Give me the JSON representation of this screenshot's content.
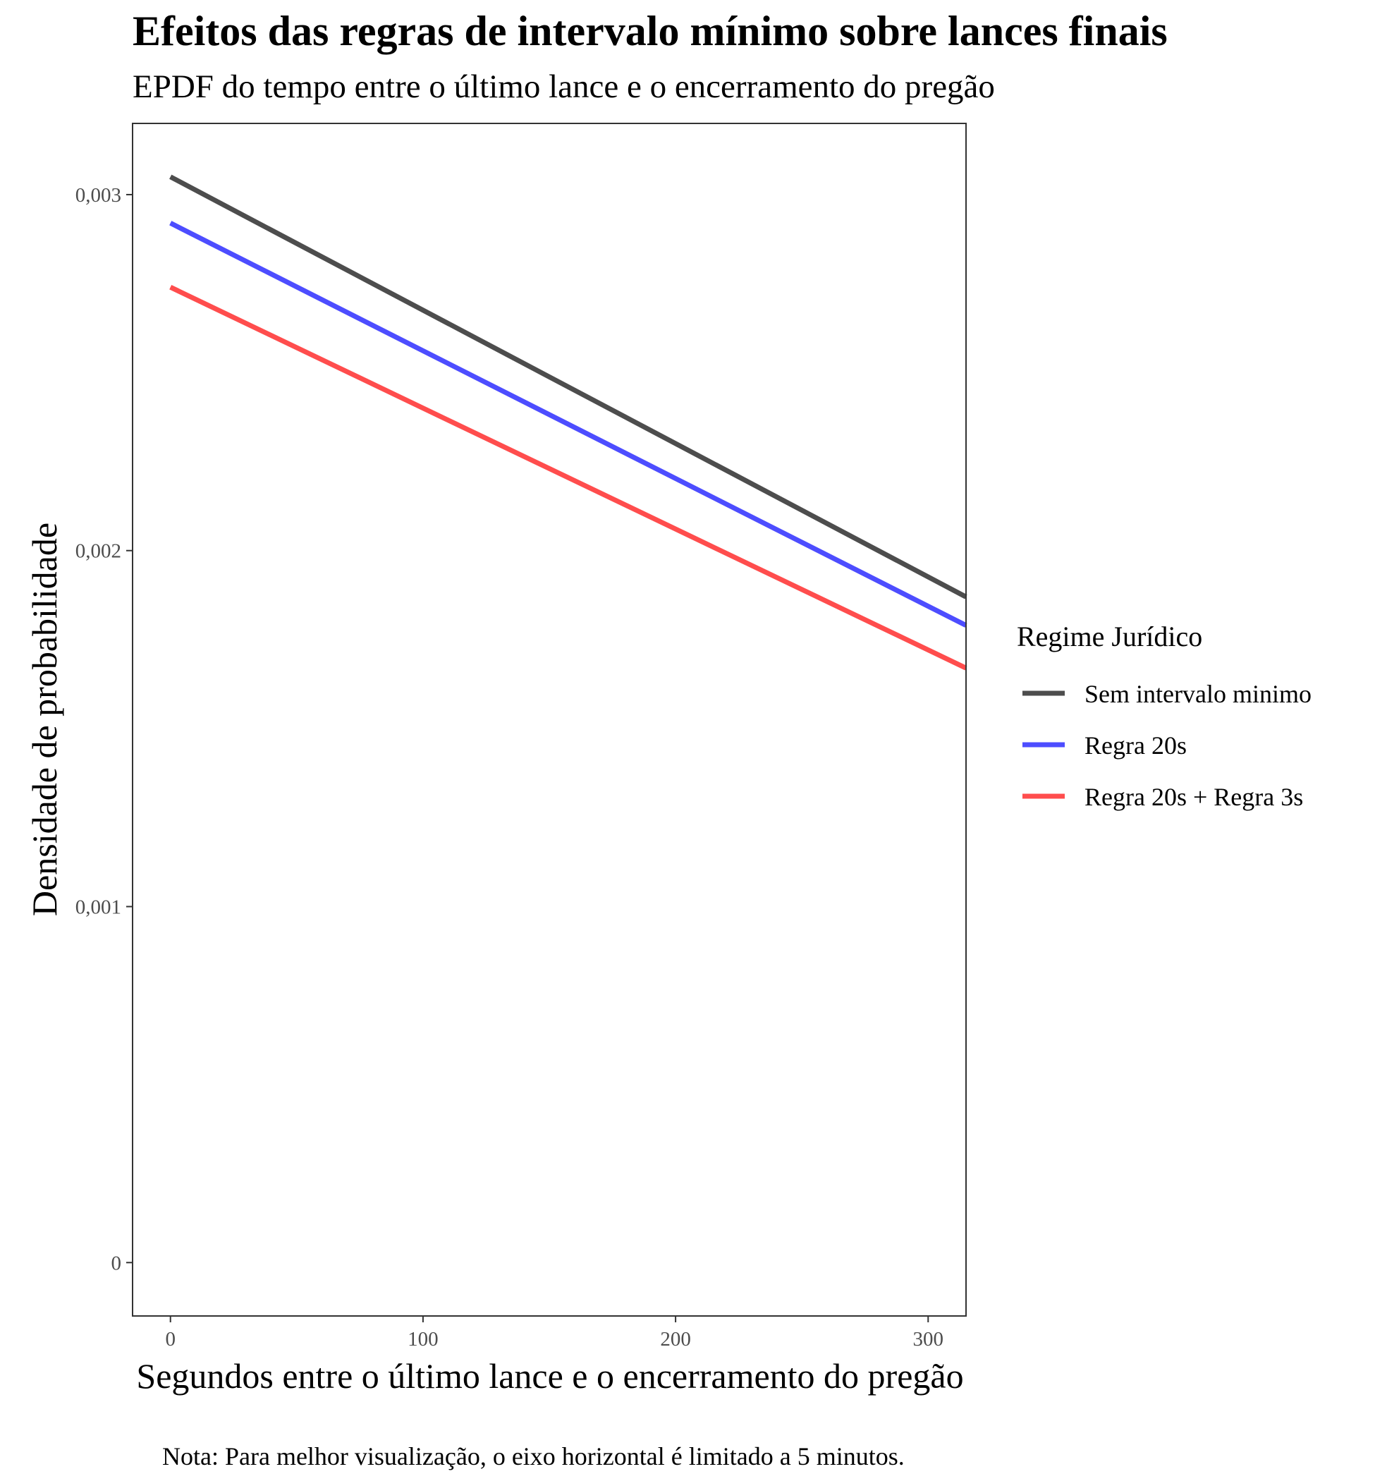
{
  "chart_data": {
    "type": "line",
    "title": "Efeitos das regras de intervalo mínimo sobre lances finais",
    "subtitle": "EPDF do tempo entre o último lance e o encerramento do pregão",
    "xlabel": "Segundos entre o último lance e o encerramento do pregão",
    "ylabel": "Densidade de probabilidade",
    "caption": "Nota: Para melhor visualização, o eixo horizontal é limitado a 5 minutos.",
    "xlim": [
      -15,
      315
    ],
    "ylim": [
      -0.00015,
      0.0032
    ],
    "x_ticks": [
      0,
      100,
      200,
      300
    ],
    "x_tick_labels": [
      "0",
      "100",
      "200",
      "300"
    ],
    "y_ticks": [
      0,
      0.001,
      0.002,
      0.003
    ],
    "y_tick_labels": [
      "0",
      "0,001",
      "0,002",
      "0,003"
    ],
    "grid": false,
    "legend_title": "Regime Jurídico",
    "legend_position": "right",
    "series": [
      {
        "name": "Sem intervalo minimo",
        "color": "#4d4d4d",
        "x": [
          0,
          315
        ],
        "y": [
          0.00305,
          0.00187
        ]
      },
      {
        "name": "Regra 20s",
        "color": "#4d4dff",
        "x": [
          0,
          315
        ],
        "y": [
          0.00292,
          0.00179
        ]
      },
      {
        "name": "Regra 20s + Regra 3s",
        "color": "#ff4d4d",
        "x": [
          0,
          315
        ],
        "y": [
          0.00274,
          0.00167
        ]
      }
    ]
  }
}
